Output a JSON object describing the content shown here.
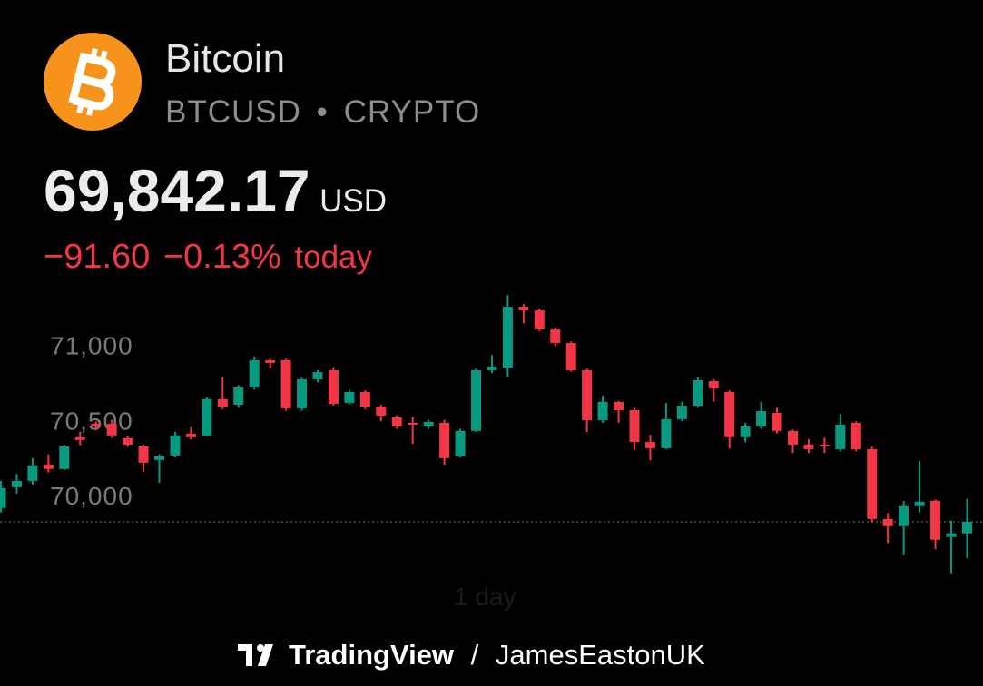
{
  "header": {
    "name": "Bitcoin",
    "symbol": "BTCUSD",
    "separator": "•",
    "market": "CRYPTO",
    "price": "69,842.17",
    "currency": "USD",
    "change": "−91.60",
    "change_percent": "−0.13%",
    "period": "today"
  },
  "chart_data": {
    "type": "candlestick",
    "up_color": "#089981",
    "down_color": "#f23645",
    "ylim": [
      69450,
      71380
    ],
    "yticks": [
      {
        "value": 70000,
        "label": "70,000"
      },
      {
        "value": 70500,
        "label": "70,500"
      },
      {
        "value": 71000,
        "label": "71,000"
      }
    ],
    "open": [
      69934,
      70072,
      70114,
      70223,
      70193,
      70404,
      70494,
      70494,
      70398,
      70343,
      70253,
      70283,
      70428,
      70416,
      70657,
      70620,
      70735,
      70916,
      70916,
      70596,
      70789,
      70849,
      70633,
      70705,
      70608,
      70536,
      70500,
      70476,
      70500,
      70277,
      70446,
      70849,
      70867,
      71271,
      71247,
      71120,
      71030,
      70849,
      70518,
      70639,
      70584,
      70373,
      70331,
      70524,
      70614,
      70777,
      70705,
      70404,
      70476,
      70566,
      70446,
      70355,
      70355,
      70325,
      70500,
      70325,
      69861,
      69813,
      69946,
      69982,
      69741,
      69765
    ],
    "high": [
      70114,
      70160,
      70265,
      70290,
      70355,
      70440,
      70510,
      70520,
      70410,
      70355,
      70290,
      70440,
      70470,
      70670,
      70800,
      70750,
      70940,
      70925,
      70925,
      70800,
      70850,
      70870,
      70720,
      70715,
      70620,
      70550,
      70540,
      70520,
      70520,
      70460,
      70860,
      70950,
      71349,
      71290,
      71260,
      71135,
      71040,
      70860,
      70680,
      70645,
      70600,
      70420,
      70630,
      70640,
      70800,
      70790,
      70715,
      70500,
      70640,
      70600,
      70455,
      70390,
      70400,
      70560,
      70510,
      70340,
      69900,
      69980,
      70247,
      69990,
      69850,
      69994
    ],
    "low": [
      69904,
      70030,
      70084,
      70170,
      70187,
      70350,
      70450,
      70400,
      70340,
      70175,
      70100,
      70270,
      70390,
      70410,
      70590,
      70600,
      70720,
      70860,
      70580,
      70580,
      70770,
      70615,
      70620,
      70590,
      70510,
      70460,
      70360,
      70460,
      70220,
      70270,
      70440,
      70830,
      70800,
      71160,
      71110,
      71010,
      70840,
      70440,
      70500,
      70500,
      70320,
      70250,
      70325,
      70510,
      70600,
      70640,
      70330,
      70370,
      70460,
      70430,
      70300,
      70300,
      70300,
      70310,
      70310,
      69840,
      69700,
      69620,
      69904,
      69660,
      69494,
      69602
    ],
    "close": [
      70066,
      70114,
      70217,
      70193,
      70343,
      70386,
      70476,
      70416,
      70355,
      70235,
      70277,
      70416,
      70404,
      70657,
      70608,
      70735,
      70916,
      70898,
      70596,
      70789,
      70837,
      70626,
      70705,
      70608,
      70548,
      70476,
      70488,
      70506,
      70265,
      70446,
      70849,
      70873,
      71271,
      71247,
      71120,
      71030,
      70849,
      70518,
      70639,
      70584,
      70373,
      70331,
      70524,
      70614,
      70783,
      70729,
      70404,
      70476,
      70578,
      70446,
      70355,
      70325,
      70343,
      70488,
      70325,
      69861,
      69813,
      69946,
      69976,
      69723,
      69765,
      69842
    ],
    "interval": "1 day"
  },
  "footer": {
    "brand": "TradingView",
    "separator": "/",
    "user": "JamesEastonUK"
  }
}
